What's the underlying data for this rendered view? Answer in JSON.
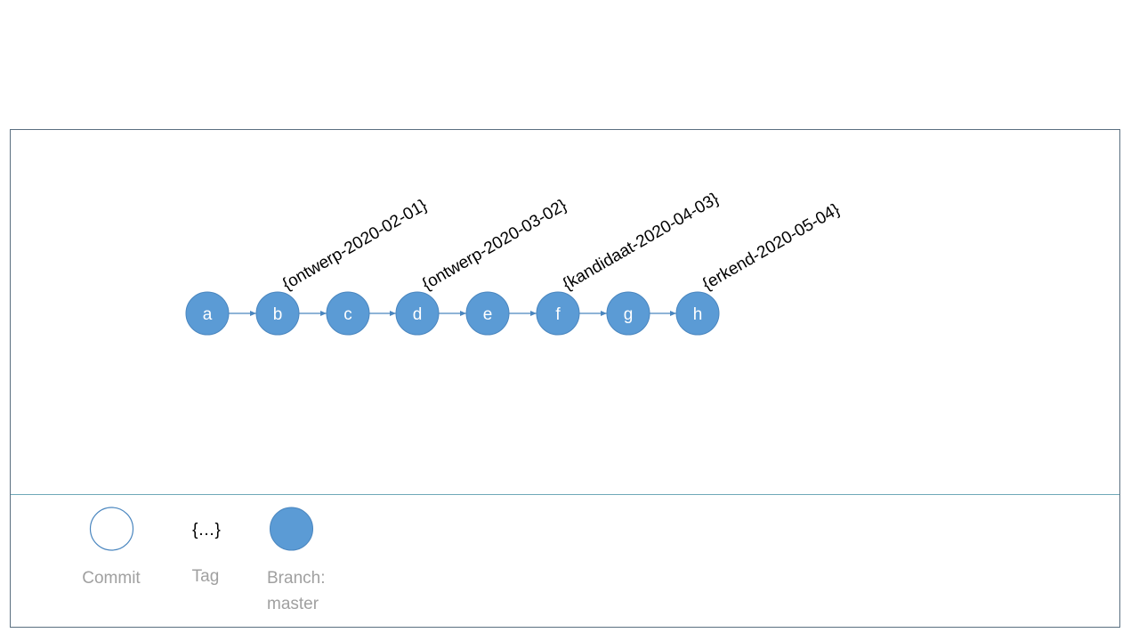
{
  "colors": {
    "branch_fill": "#5b9bd5",
    "branch_stroke": "#4a86bf",
    "frame": "#5a6f80",
    "divider": "#6fa8b8",
    "legend_text": "#a0a0a0",
    "tag_text": "#000000"
  },
  "commits": [
    {
      "label": "a",
      "tag": ""
    },
    {
      "label": "b",
      "tag": "{ontwerp-2020-02-01}"
    },
    {
      "label": "c",
      "tag": ""
    },
    {
      "label": "d",
      "tag": "{ontwerp-2020-03-02}"
    },
    {
      "label": "e",
      "tag": ""
    },
    {
      "label": "f",
      "tag": "{kandidaat-2020-04-03}"
    },
    {
      "label": "g",
      "tag": ""
    },
    {
      "label": "h",
      "tag": "{erkend-2020-05-04}"
    }
  ],
  "legend": {
    "commit_label": "Commit",
    "tag_symbol": "{…}",
    "tag_label": "Tag",
    "branch_label_line1": "Branch:",
    "branch_label_line2": "master"
  }
}
